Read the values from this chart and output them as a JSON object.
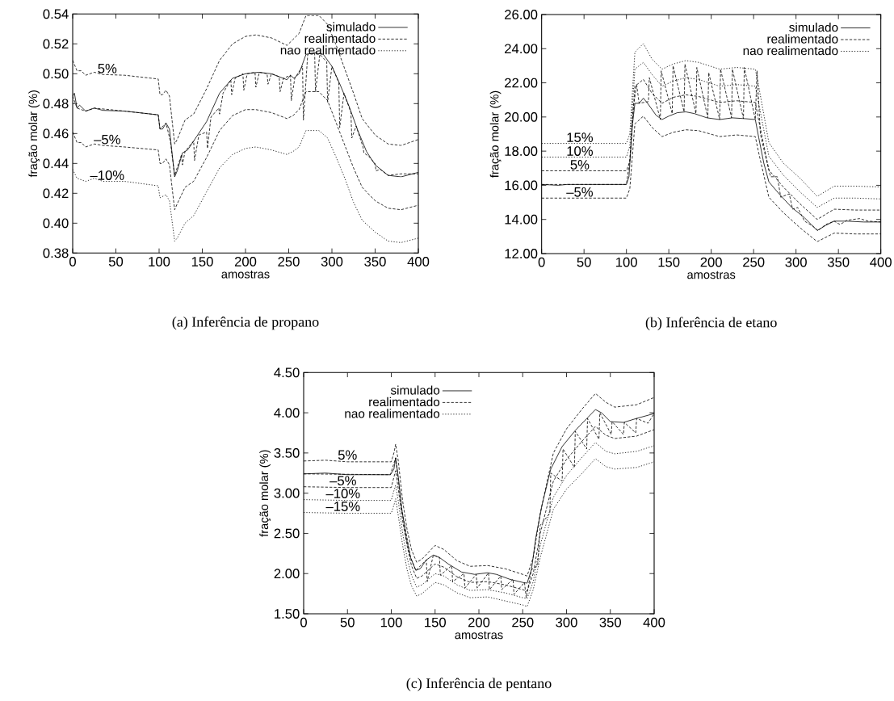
{
  "chart_data": [
    {
      "type": "line",
      "title": "(a)  Inferência de propano",
      "xlabel": "amostras",
      "ylabel": "fração molar (%)",
      "legend": "top right",
      "xlim": [
        0,
        400
      ],
      "ylim": [
        0.38,
        0.54
      ],
      "xticks": [
        0,
        50,
        100,
        150,
        200,
        250,
        300,
        350,
        400
      ],
      "yticks": [
        {
          "value": 0.38,
          "label": "0.38"
        },
        {
          "value": 0.4,
          "label": "0.40"
        },
        {
          "value": 0.42,
          "label": "0.42"
        },
        {
          "value": 0.44,
          "label": "0.44"
        },
        {
          "value": 0.46,
          "label": "0.46"
        },
        {
          "value": 0.48,
          "label": "0.48"
        },
        {
          "value": 0.5,
          "label": "0.50"
        },
        {
          "value": 0.52,
          "label": "0.52"
        },
        {
          "value": 0.54,
          "label": "0.54"
        }
      ],
      "annotations": [
        {
          "text": "5%",
          "x": 40,
          "y": 0.4995
        },
        {
          "text": "–5%",
          "x": 40,
          "y": 0.452
        },
        {
          "text": "–10%",
          "x": 40,
          "y": 0.428
        }
      ],
      "series": [
        {
          "name": "simulado",
          "color": "#000000",
          "line_style": "solid",
          "x": [
            0,
            2,
            5,
            8,
            15,
            25,
            35,
            60,
            99,
            101,
            104,
            108,
            112,
            118,
            121,
            127,
            133,
            140,
            155,
            170,
            185,
            200,
            215,
            230,
            248,
            252,
            256,
            262,
            270,
            280,
            290,
            300,
            310,
            320,
            330,
            340,
            350,
            365,
            380,
            400
          ],
          "values": [
            0.485,
            0.487,
            0.477,
            0.479,
            0.475,
            0.477,
            0.4755,
            0.475,
            0.4725,
            0.463,
            0.463,
            0.467,
            0.463,
            0.431,
            0.435,
            0.447,
            0.449,
            0.455,
            0.468,
            0.487,
            0.497,
            0.5,
            0.501,
            0.5,
            0.496,
            0.499,
            0.497,
            0.5,
            0.513,
            0.514,
            0.513,
            0.505,
            0.492,
            0.478,
            0.462,
            0.448,
            0.439,
            0.432,
            0.431,
            0.434
          ]
        },
        {
          "name": "realimentado",
          "color": "#000000",
          "line_style": "dashed",
          "x": [
            0,
            5,
            15,
            25,
            60,
            99,
            101,
            108,
            113,
            118,
            126,
            127,
            130,
            140,
            141,
            146,
            155,
            156,
            160,
            169,
            170,
            174,
            183,
            184,
            188,
            197,
            198,
            202,
            211,
            212,
            216,
            225,
            226,
            230,
            239,
            240,
            244,
            252,
            253,
            257,
            266,
            267,
            272,
            280,
            281,
            286,
            294,
            295,
            300,
            308,
            309,
            314,
            322,
            323,
            328,
            336,
            337,
            342,
            350,
            351,
            356,
            365,
            380,
            400
          ],
          "values": [
            0.485,
            0.477,
            0.475,
            0.477,
            0.475,
            0.4725,
            0.463,
            0.467,
            0.455,
            0.432,
            0.446,
            0.439,
            0.448,
            0.455,
            0.442,
            0.459,
            0.461,
            0.45,
            0.471,
            0.477,
            0.473,
            0.487,
            0.496,
            0.486,
            0.497,
            0.5,
            0.489,
            0.5,
            0.501,
            0.491,
            0.501,
            0.5,
            0.493,
            0.5,
            0.498,
            0.488,
            0.497,
            0.499,
            0.482,
            0.497,
            0.505,
            0.469,
            0.513,
            0.514,
            0.488,
            0.513,
            0.508,
            0.481,
            0.505,
            0.494,
            0.464,
            0.487,
            0.474,
            0.457,
            0.465,
            0.451,
            0.447,
            0.445,
            0.44,
            0.435,
            0.436,
            0.432,
            0.433,
            0.433
          ]
        },
        {
          "name": "nao realimentado",
          "color": "#000000",
          "line_style": "dotted",
          "x": [
            0,
            5,
            15,
            25,
            35,
            60,
            99,
            101,
            108,
            112,
            118,
            121,
            130,
            140,
            155,
            170,
            185,
            200,
            212,
            230,
            248,
            255,
            262,
            270,
            285,
            295,
            305,
            315,
            325,
            335,
            350,
            365,
            380,
            400
          ],
          "values": [
            0.436,
            0.43,
            0.428,
            0.43,
            0.428,
            0.428,
            0.425,
            0.417,
            0.419,
            0.415,
            0.388,
            0.39,
            0.4,
            0.405,
            0.421,
            0.437,
            0.446,
            0.45,
            0.451,
            0.449,
            0.446,
            0.448,
            0.451,
            0.462,
            0.462,
            0.457,
            0.444,
            0.43,
            0.414,
            0.402,
            0.394,
            0.388,
            0.387,
            0.39
          ]
        },
        {
          "color": "#000000",
          "line_style": "dashed",
          "x": [
            0,
            5,
            10,
            15,
            25,
            35,
            60,
            99,
            101,
            104,
            108,
            112,
            118,
            121,
            130,
            140,
            155,
            170,
            185,
            200,
            212,
            230,
            248,
            255,
            262,
            270,
            285,
            295,
            305,
            315,
            325,
            335,
            350,
            365,
            380,
            400
          ],
          "values": [
            0.509,
            0.502,
            0.502,
            0.499,
            0.501,
            0.4995,
            0.499,
            0.4965,
            0.486,
            0.486,
            0.489,
            0.485,
            0.453,
            0.456,
            0.469,
            0.473,
            0.49,
            0.509,
            0.52,
            0.525,
            0.526,
            0.524,
            0.519,
            0.523,
            0.527,
            0.539,
            0.539,
            0.533,
            0.519,
            0.503,
            0.487,
            0.47,
            0.459,
            0.453,
            0.452,
            0.456
          ]
        },
        {
          "color": "#000000",
          "line_style": "dashed",
          "x": [
            0,
            5,
            10,
            15,
            25,
            35,
            60,
            99,
            101,
            104,
            108,
            112,
            118,
            121,
            130,
            140,
            155,
            170,
            185,
            200,
            212,
            230,
            248,
            255,
            262,
            270,
            285,
            295,
            305,
            315,
            325,
            335,
            350,
            365,
            380,
            400
          ],
          "values": [
            0.461,
            0.454,
            0.454,
            0.451,
            0.453,
            0.452,
            0.451,
            0.449,
            0.44,
            0.44,
            0.443,
            0.439,
            0.409,
            0.413,
            0.424,
            0.428,
            0.444,
            0.462,
            0.472,
            0.476,
            0.476,
            0.474,
            0.47,
            0.472,
            0.476,
            0.488,
            0.488,
            0.482,
            0.467,
            0.452,
            0.437,
            0.424,
            0.415,
            0.41,
            0.409,
            0.412
          ]
        }
      ]
    },
    {
      "type": "line",
      "title": "(b)  Inferência de etano",
      "xlabel": "amostras",
      "ylabel": "fração molar (%)",
      "legend": "top right",
      "xlim": [
        0,
        400
      ],
      "ylim": [
        12,
        26
      ],
      "xticks": [
        0,
        50,
        100,
        150,
        200,
        250,
        300,
        350,
        400
      ],
      "yticks": [
        {
          "value": 12,
          "label": "12.00"
        },
        {
          "value": 14,
          "label": "14.00"
        },
        {
          "value": 16,
          "label": "16.00"
        },
        {
          "value": 18,
          "label": "18.00"
        },
        {
          "value": 20,
          "label": "20.00"
        },
        {
          "value": 22,
          "label": "22.00"
        },
        {
          "value": 24,
          "label": "24.00"
        },
        {
          "value": 26,
          "label": "26.00"
        }
      ],
      "annotations": [
        {
          "text": "15%",
          "x": 45,
          "y": 18.45
        },
        {
          "text": "10%",
          "x": 45,
          "y": 17.65
        },
        {
          "text": "5%",
          "x": 45,
          "y": 16.85
        },
        {
          "text": "–5%",
          "x": 45,
          "y": 15.25
        }
      ],
      "series": [
        {
          "name": "simulado",
          "color": "#000000",
          "line_style": "solid",
          "x": [
            0,
            20,
            30,
            100,
            103,
            107,
            110,
            115,
            120,
            125,
            135,
            142,
            150,
            160,
            170,
            180,
            195,
            210,
            225,
            240,
            252,
            256,
            262,
            268,
            280,
            295,
            310,
            325,
            335,
            345,
            360,
            380,
            400
          ],
          "values": [
            16.05,
            16.0,
            16.05,
            16.05,
            16.5,
            19.5,
            20.8,
            20.8,
            21.1,
            20.8,
            20.1,
            19.85,
            20.05,
            20.25,
            20.3,
            20.2,
            19.95,
            19.85,
            19.95,
            19.9,
            19.85,
            18.8,
            17.3,
            16.2,
            15.5,
            14.7,
            14.1,
            13.35,
            13.65,
            13.9,
            13.9,
            13.85,
            13.85
          ]
        },
        {
          "name": "realimentado",
          "color": "#000000",
          "line_style": "dashed",
          "x": [
            0,
            100,
            104,
            108,
            112,
            115,
            126,
            127,
            140,
            141,
            154,
            155,
            168,
            169,
            182,
            183,
            196,
            197,
            210,
            211,
            224,
            225,
            238,
            239,
            252,
            254,
            258,
            265,
            270,
            278,
            282,
            292,
            296,
            302,
            310,
            320,
            326,
            335,
            345,
            352,
            360,
            375,
            385,
            400
          ],
          "values": [
            16.05,
            16.05,
            17.5,
            20.5,
            21.9,
            20.8,
            20.9,
            22.3,
            19.85,
            22.7,
            20.2,
            23.0,
            20.3,
            23.1,
            20.2,
            22.9,
            19.95,
            22.6,
            19.85,
            22.8,
            19.95,
            22.8,
            19.9,
            22.9,
            19.85,
            22.7,
            19.0,
            17.5,
            16.5,
            16.5,
            15.3,
            15.5,
            14.6,
            14.7,
            13.9,
            13.6,
            13.35,
            13.7,
            13.9,
            13.7,
            13.95,
            14.05,
            13.9,
            13.85
          ]
        },
        {
          "name": "nao realimentado",
          "color": "#000000",
          "line_style": "dotted",
          "x": [
            0,
            100,
            104,
            110,
            120,
            130,
            142,
            155,
            170,
            185,
            210,
            230,
            252,
            256,
            268,
            285,
            305,
            325,
            345,
            370,
            400
          ],
          "values": [
            17.65,
            17.65,
            18.3,
            22.8,
            23.2,
            22.5,
            21.8,
            22.1,
            22.3,
            22.2,
            21.8,
            21.9,
            21.8,
            20.8,
            17.7,
            16.6,
            15.6,
            14.7,
            15.25,
            15.25,
            15.2
          ]
        },
        {
          "color": "#000000",
          "line_style": "dotted",
          "x": [
            0,
            100,
            104,
            110,
            120,
            130,
            142,
            155,
            170,
            185,
            210,
            230,
            252,
            256,
            268,
            285,
            305,
            325,
            345,
            370,
            400
          ],
          "values": [
            18.45,
            18.45,
            19.0,
            23.8,
            24.3,
            23.4,
            22.8,
            23.1,
            23.3,
            23.2,
            22.8,
            22.9,
            22.8,
            21.8,
            18.5,
            17.3,
            16.4,
            15.35,
            15.95,
            15.95,
            15.9
          ]
        },
        {
          "color": "#000000",
          "line_style": "dashed",
          "x": [
            0,
            100,
            104,
            110,
            120,
            130,
            142,
            155,
            170,
            185,
            210,
            230,
            252,
            256,
            268,
            285,
            305,
            325,
            345,
            370,
            400
          ],
          "values": [
            16.85,
            16.85,
            17.4,
            21.8,
            22.2,
            21.4,
            20.8,
            21.15,
            21.3,
            21.2,
            20.85,
            20.95,
            20.85,
            19.8,
            16.9,
            15.9,
            14.9,
            14.0,
            14.6,
            14.55,
            14.55
          ]
        },
        {
          "color": "#000000",
          "line_style": "dashed",
          "x": [
            0,
            100,
            104,
            110,
            120,
            130,
            142,
            155,
            170,
            185,
            210,
            230,
            252,
            256,
            268,
            285,
            305,
            325,
            345,
            370,
            400
          ],
          "values": [
            15.25,
            15.25,
            15.8,
            19.6,
            20.05,
            19.4,
            18.85,
            19.1,
            19.25,
            19.2,
            18.85,
            18.95,
            18.85,
            17.9,
            15.3,
            14.4,
            13.5,
            12.7,
            13.2,
            13.15,
            13.15
          ]
        }
      ]
    },
    {
      "type": "line",
      "title": "(c)  Inferência de pentano",
      "xlabel": "amostras",
      "ylabel": "fração molar (%)",
      "legend": "top left",
      "xlim": [
        0,
        400
      ],
      "ylim": [
        1.5,
        4.5
      ],
      "xticks": [
        0,
        50,
        100,
        150,
        200,
        250,
        300,
        350,
        400
      ],
      "yticks": [
        {
          "value": 1.5,
          "label": "1.50"
        },
        {
          "value": 2,
          "label": "2.00"
        },
        {
          "value": 2.5,
          "label": "2.50"
        },
        {
          "value": 3,
          "label": "3.00"
        },
        {
          "value": 3.5,
          "label": "3.50"
        },
        {
          "value": 4,
          "label": "4.00"
        },
        {
          "value": 4.5,
          "label": "4.50"
        }
      ],
      "annotations": [
        {
          "text": "5%",
          "x": 50,
          "y": 3.4
        },
        {
          "text": "–5%",
          "x": 45,
          "y": 3.08
        },
        {
          "text": "–10%",
          "x": 45,
          "y": 2.92
        },
        {
          "text": "–15%",
          "x": 45,
          "y": 2.76
        }
      ],
      "series": [
        {
          "name": "simulado",
          "color": "#000000",
          "line_style": "solid",
          "x": [
            0,
            25,
            50,
            99,
            103,
            105,
            108,
            112,
            117,
            122,
            128,
            133,
            140,
            148,
            155,
            165,
            180,
            195,
            210,
            220,
            235,
            250,
            255,
            260,
            265,
            272,
            282,
            295,
            310,
            325,
            333,
            340,
            350,
            365,
            380,
            400
          ],
          "values": [
            3.24,
            3.25,
            3.23,
            3.23,
            3.3,
            3.44,
            3.2,
            2.8,
            2.45,
            2.2,
            2.04,
            2.06,
            2.17,
            2.23,
            2.2,
            2.12,
            2.02,
            1.99,
            2.01,
            1.99,
            1.93,
            1.89,
            1.88,
            2.05,
            2.45,
            2.85,
            3.3,
            3.58,
            3.78,
            3.95,
            4.04,
            4.0,
            3.89,
            3.88,
            3.93,
            3.99
          ]
        },
        {
          "name": "realimentado",
          "color": "#000000",
          "line_style": "dashed",
          "x": [
            0,
            99,
            105,
            112,
            122,
            128,
            140,
            141,
            148,
            155,
            156,
            169,
            170,
            183,
            184,
            197,
            198,
            211,
            212,
            225,
            226,
            239,
            240,
            252,
            254,
            260,
            267,
            270,
            281,
            282,
            295,
            296,
            309,
            310,
            323,
            324,
            337,
            338,
            351,
            352,
            365,
            366,
            379,
            380,
            393,
            400
          ],
          "values": [
            3.24,
            3.23,
            3.44,
            2.8,
            2.2,
            2.04,
            2.17,
            1.9,
            2.23,
            2.2,
            1.98,
            2.1,
            1.9,
            2.0,
            1.82,
            1.99,
            1.82,
            2.01,
            1.8,
            1.97,
            1.8,
            1.93,
            1.74,
            1.89,
            1.7,
            2.05,
            2.1,
            2.6,
            2.75,
            3.25,
            3.15,
            3.55,
            3.32,
            3.77,
            3.55,
            3.93,
            3.67,
            4.0,
            3.73,
            3.89,
            3.73,
            3.88,
            3.75,
            3.93,
            3.87,
            3.99
          ]
        },
        {
          "name": "nao realimentado",
          "color": "#000000",
          "line_style": "dotted",
          "x": [
            0,
            50,
            100,
            103,
            105,
            108,
            113,
            118,
            123,
            129,
            135,
            150,
            160,
            175,
            190,
            210,
            230,
            250,
            255,
            262,
            270,
            285,
            300,
            318,
            333,
            345,
            355,
            380,
            400
          ],
          "values": [
            2.92,
            2.91,
            2.91,
            3.03,
            3.1,
            2.9,
            2.5,
            2.2,
            1.98,
            1.83,
            1.86,
            2.0,
            1.97,
            1.86,
            1.79,
            1.8,
            1.76,
            1.7,
            1.69,
            1.9,
            2.35,
            2.95,
            3.22,
            3.45,
            3.63,
            3.52,
            3.49,
            3.52,
            3.59
          ]
        },
        {
          "color": "#000000",
          "line_style": "dashed",
          "x": [
            0,
            25,
            50,
            100,
            103,
            105,
            108,
            113,
            118,
            123,
            129,
            135,
            150,
            160,
            175,
            190,
            210,
            230,
            250,
            255,
            262,
            270,
            285,
            300,
            318,
            333,
            345,
            355,
            380,
            400
          ],
          "values": [
            3.4,
            3.41,
            3.39,
            3.39,
            3.5,
            3.61,
            3.4,
            2.9,
            2.55,
            2.3,
            2.14,
            2.18,
            2.35,
            2.3,
            2.16,
            2.09,
            2.1,
            2.06,
            1.99,
            1.97,
            2.2,
            2.75,
            3.5,
            3.8,
            4.05,
            4.24,
            4.13,
            4.07,
            4.1,
            4.19
          ]
        },
        {
          "color": "#000000",
          "line_style": "dashed",
          "x": [
            0,
            50,
            100,
            103,
            105,
            108,
            113,
            118,
            123,
            129,
            135,
            150,
            160,
            175,
            190,
            210,
            230,
            250,
            255,
            262,
            270,
            285,
            300,
            318,
            333,
            345,
            355,
            380,
            400
          ],
          "values": [
            3.08,
            3.07,
            3.07,
            3.2,
            3.28,
            3.05,
            2.65,
            2.35,
            2.1,
            1.94,
            1.97,
            2.12,
            2.08,
            1.96,
            1.89,
            1.9,
            1.86,
            1.8,
            1.78,
            2.0,
            2.5,
            3.15,
            3.42,
            3.65,
            3.83,
            3.72,
            3.68,
            3.71,
            3.79
          ]
        },
        {
          "color": "#000000",
          "line_style": "dotted",
          "x": [
            0,
            50,
            100,
            103,
            105,
            108,
            113,
            118,
            123,
            129,
            135,
            150,
            160,
            175,
            190,
            210,
            230,
            250,
            255,
            262,
            270,
            285,
            300,
            318,
            333,
            345,
            355,
            380,
            400
          ],
          "values": [
            2.76,
            2.75,
            2.75,
            2.85,
            2.93,
            2.72,
            2.35,
            2.05,
            1.85,
            1.72,
            1.75,
            1.89,
            1.86,
            1.76,
            1.7,
            1.71,
            1.66,
            1.61,
            1.59,
            1.8,
            2.2,
            2.8,
            3.05,
            3.25,
            3.43,
            3.33,
            3.3,
            3.32,
            3.39
          ]
        }
      ]
    }
  ]
}
